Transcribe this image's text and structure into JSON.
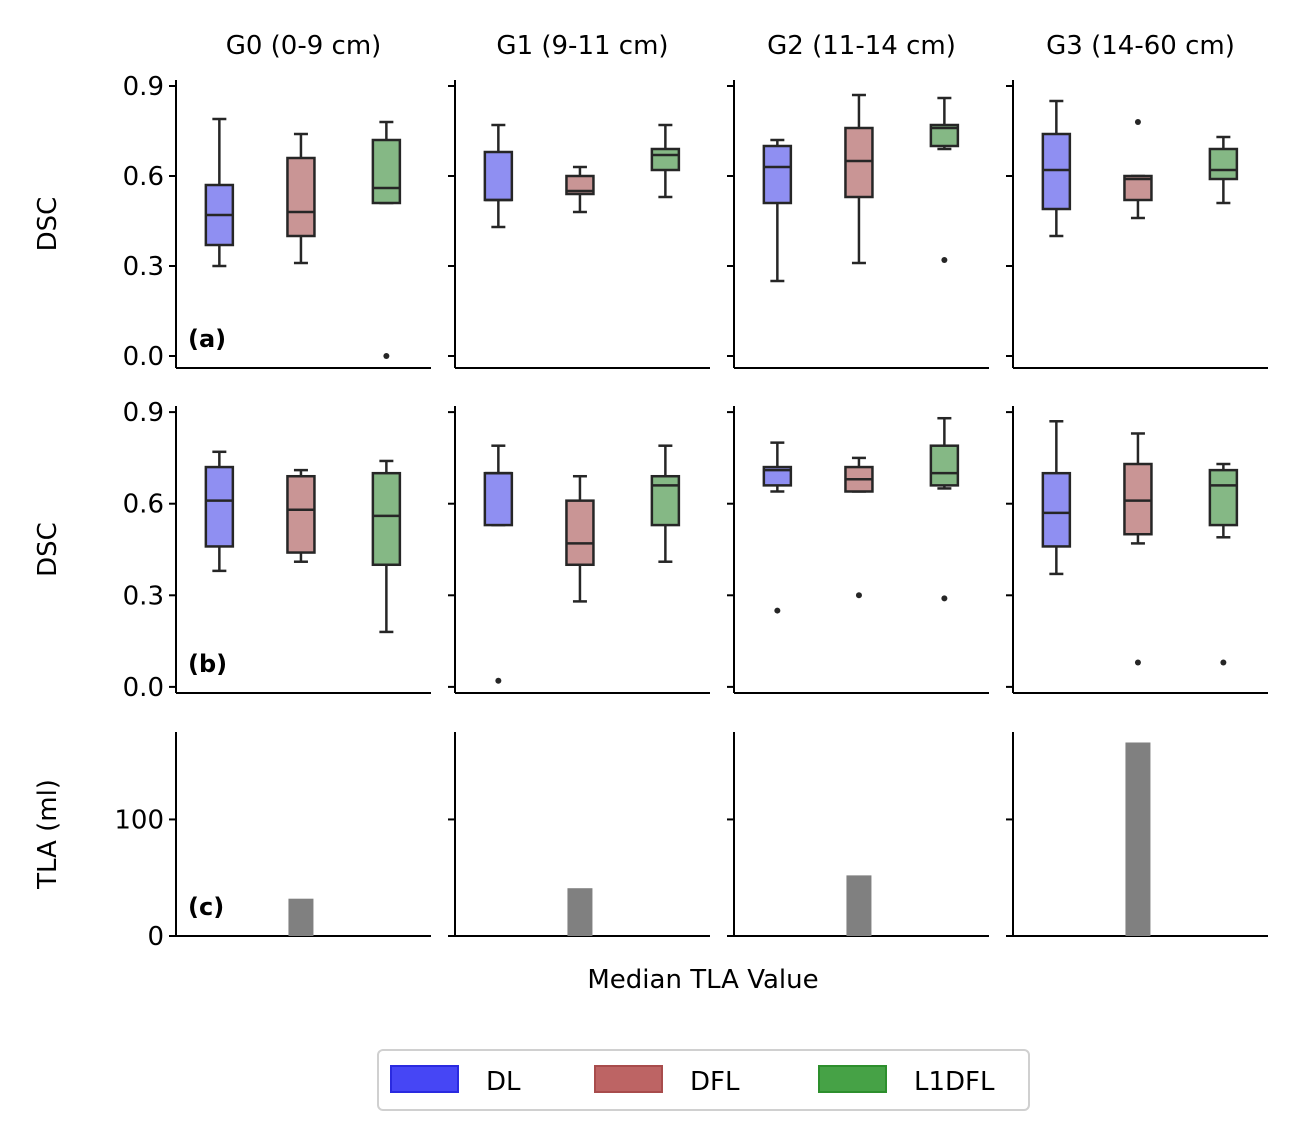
{
  "chart_data": {
    "type": "box",
    "columns": [
      "G0 (0-9 cm)",
      "G1 (9-11 cm)",
      "G2 (11-14 cm)",
      "G3 (14-60 cm)"
    ],
    "series_names": [
      "DL",
      "DFL",
      "L1DFL"
    ],
    "series_colors": [
      "#8f8ff2",
      "#c99595",
      "#85b885"
    ],
    "legend_colors": [
      "#4646f5",
      "#bd6464",
      "#46a246"
    ],
    "legend_borders": [
      "#2a2ae0",
      "#a84c4c",
      "#2d8f2d"
    ],
    "box_edge_color": "#262626",
    "bar_color": "#808080",
    "xlabel": "Median TLA Value",
    "legend_position": "bottom-center",
    "rows": [
      {
        "tag": "(a)",
        "ylabel": "DSC",
        "ylim": [
          -0.04,
          0.92
        ],
        "yticks": [
          0.0,
          0.3,
          0.6,
          0.9
        ],
        "ytick_labels": [
          "0.0",
          "0.3",
          "0.6",
          "0.9"
        ],
        "boxes": [
          [
            {
              "whislo": 0.3,
              "q1": 0.37,
              "med": 0.47,
              "q3": 0.57,
              "whishi": 0.79,
              "fliers": []
            },
            {
              "whislo": 0.31,
              "q1": 0.4,
              "med": 0.48,
              "q3": 0.66,
              "whishi": 0.74,
              "fliers": []
            },
            {
              "whislo": 0.51,
              "q1": 0.51,
              "med": 0.56,
              "q3": 0.72,
              "whishi": 0.78,
              "fliers": [
                0.0
              ]
            }
          ],
          [
            {
              "whislo": 0.43,
              "q1": 0.52,
              "med": 0.52,
              "q3": 0.68,
              "whishi": 0.77,
              "fliers": []
            },
            {
              "whislo": 0.48,
              "q1": 0.54,
              "med": 0.55,
              "q3": 0.6,
              "whishi": 0.63,
              "fliers": []
            },
            {
              "whislo": 0.53,
              "q1": 0.62,
              "med": 0.67,
              "q3": 0.69,
              "whishi": 0.77,
              "fliers": []
            }
          ],
          [
            {
              "whislo": 0.25,
              "q1": 0.51,
              "med": 0.63,
              "q3": 0.7,
              "whishi": 0.72,
              "fliers": []
            },
            {
              "whislo": 0.31,
              "q1": 0.53,
              "med": 0.65,
              "q3": 0.76,
              "whishi": 0.87,
              "fliers": []
            },
            {
              "whislo": 0.69,
              "q1": 0.7,
              "med": 0.76,
              "q3": 0.77,
              "whishi": 0.86,
              "fliers": [
                0.32
              ]
            }
          ],
          [
            {
              "whislo": 0.4,
              "q1": 0.49,
              "med": 0.62,
              "q3": 0.74,
              "whishi": 0.85,
              "fliers": []
            },
            {
              "whislo": 0.46,
              "q1": 0.52,
              "med": 0.59,
              "q3": 0.6,
              "whishi": 0.6,
              "fliers": [
                0.78
              ]
            },
            {
              "whislo": 0.51,
              "q1": 0.59,
              "med": 0.62,
              "q3": 0.69,
              "whishi": 0.73,
              "fliers": []
            }
          ]
        ]
      },
      {
        "tag": "(b)",
        "ylabel": "DSC",
        "ylim": [
          -0.02,
          0.92
        ],
        "yticks": [
          0.0,
          0.3,
          0.6,
          0.9
        ],
        "ytick_labels": [
          "0.0",
          "0.3",
          "0.6",
          "0.9"
        ],
        "boxes": [
          [
            {
              "whislo": 0.38,
              "q1": 0.46,
              "med": 0.61,
              "q3": 0.72,
              "whishi": 0.77,
              "fliers": []
            },
            {
              "whislo": 0.41,
              "q1": 0.44,
              "med": 0.58,
              "q3": 0.69,
              "whishi": 0.71,
              "fliers": []
            },
            {
              "whislo": 0.18,
              "q1": 0.4,
              "med": 0.56,
              "q3": 0.7,
              "whishi": 0.74,
              "fliers": []
            }
          ],
          [
            {
              "whislo": 0.53,
              "q1": 0.53,
              "med": 0.7,
              "q3": 0.7,
              "whishi": 0.79,
              "fliers": [
                0.02
              ]
            },
            {
              "whislo": 0.28,
              "q1": 0.4,
              "med": 0.47,
              "q3": 0.61,
              "whishi": 0.69,
              "fliers": []
            },
            {
              "whislo": 0.41,
              "q1": 0.53,
              "med": 0.66,
              "q3": 0.69,
              "whishi": 0.79,
              "fliers": []
            }
          ],
          [
            {
              "whislo": 0.64,
              "q1": 0.66,
              "med": 0.71,
              "q3": 0.72,
              "whishi": 0.8,
              "fliers": [
                0.25
              ]
            },
            {
              "whislo": 0.64,
              "q1": 0.64,
              "med": 0.68,
              "q3": 0.72,
              "whishi": 0.75,
              "fliers": [
                0.3
              ]
            },
            {
              "whislo": 0.65,
              "q1": 0.66,
              "med": 0.7,
              "q3": 0.79,
              "whishi": 0.88,
              "fliers": [
                0.29
              ]
            }
          ],
          [
            {
              "whislo": 0.37,
              "q1": 0.46,
              "med": 0.57,
              "q3": 0.7,
              "whishi": 0.87,
              "fliers": []
            },
            {
              "whislo": 0.47,
              "q1": 0.5,
              "med": 0.61,
              "q3": 0.73,
              "whishi": 0.83,
              "fliers": [
                0.08
              ]
            },
            {
              "whislo": 0.49,
              "q1": 0.53,
              "med": 0.66,
              "q3": 0.71,
              "whishi": 0.73,
              "fliers": [
                0.08
              ]
            }
          ]
        ]
      },
      {
        "tag": "(c)",
        "ylabel": "TLA (ml)",
        "ylim": [
          0,
          175
        ],
        "yticks": [
          0,
          100
        ],
        "ytick_labels": [
          "0",
          "100"
        ],
        "bar_values": [
          32,
          41,
          52,
          166
        ]
      }
    ]
  }
}
